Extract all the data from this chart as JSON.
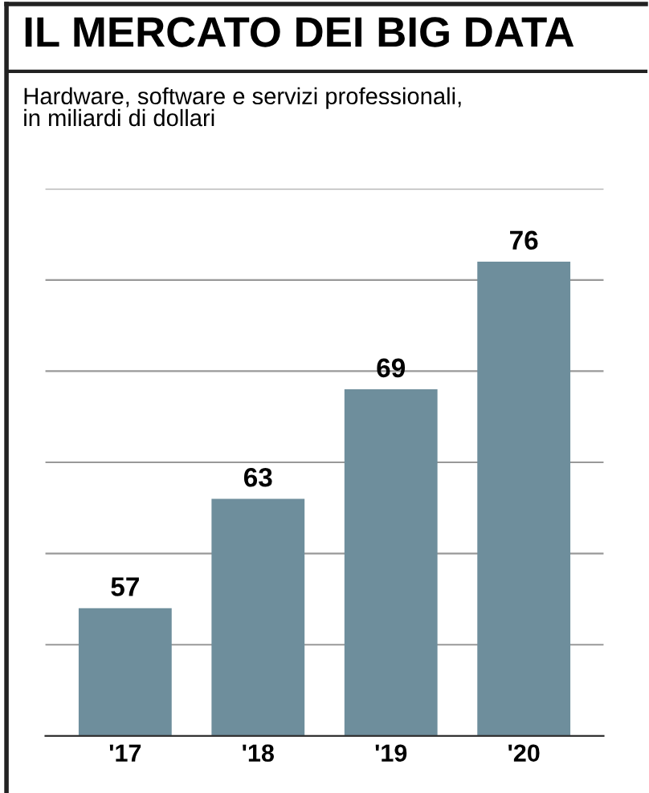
{
  "chart_data": {
    "type": "bar",
    "title": "IL MERCATO DEI BIG DATA",
    "subtitle": "Hardware, software e servizi professionali,\nin miliardi di dollari",
    "categories": [
      "'17",
      "'18",
      "'19",
      "'20"
    ],
    "values": [
      57,
      63,
      69,
      76
    ],
    "color": "#6e8e9c",
    "ylim": [
      50,
      80
    ],
    "yticks": [
      {
        "value": 55,
        "label": null
      },
      {
        "value": 60,
        "label": null
      },
      {
        "value": 65,
        "label": null
      },
      {
        "value": 70,
        "label": null
      },
      {
        "value": 75,
        "label": null
      },
      {
        "value": 80,
        "label": null
      }
    ],
    "grid": "y",
    "data_labels": true,
    "tick_labels": "x"
  }
}
